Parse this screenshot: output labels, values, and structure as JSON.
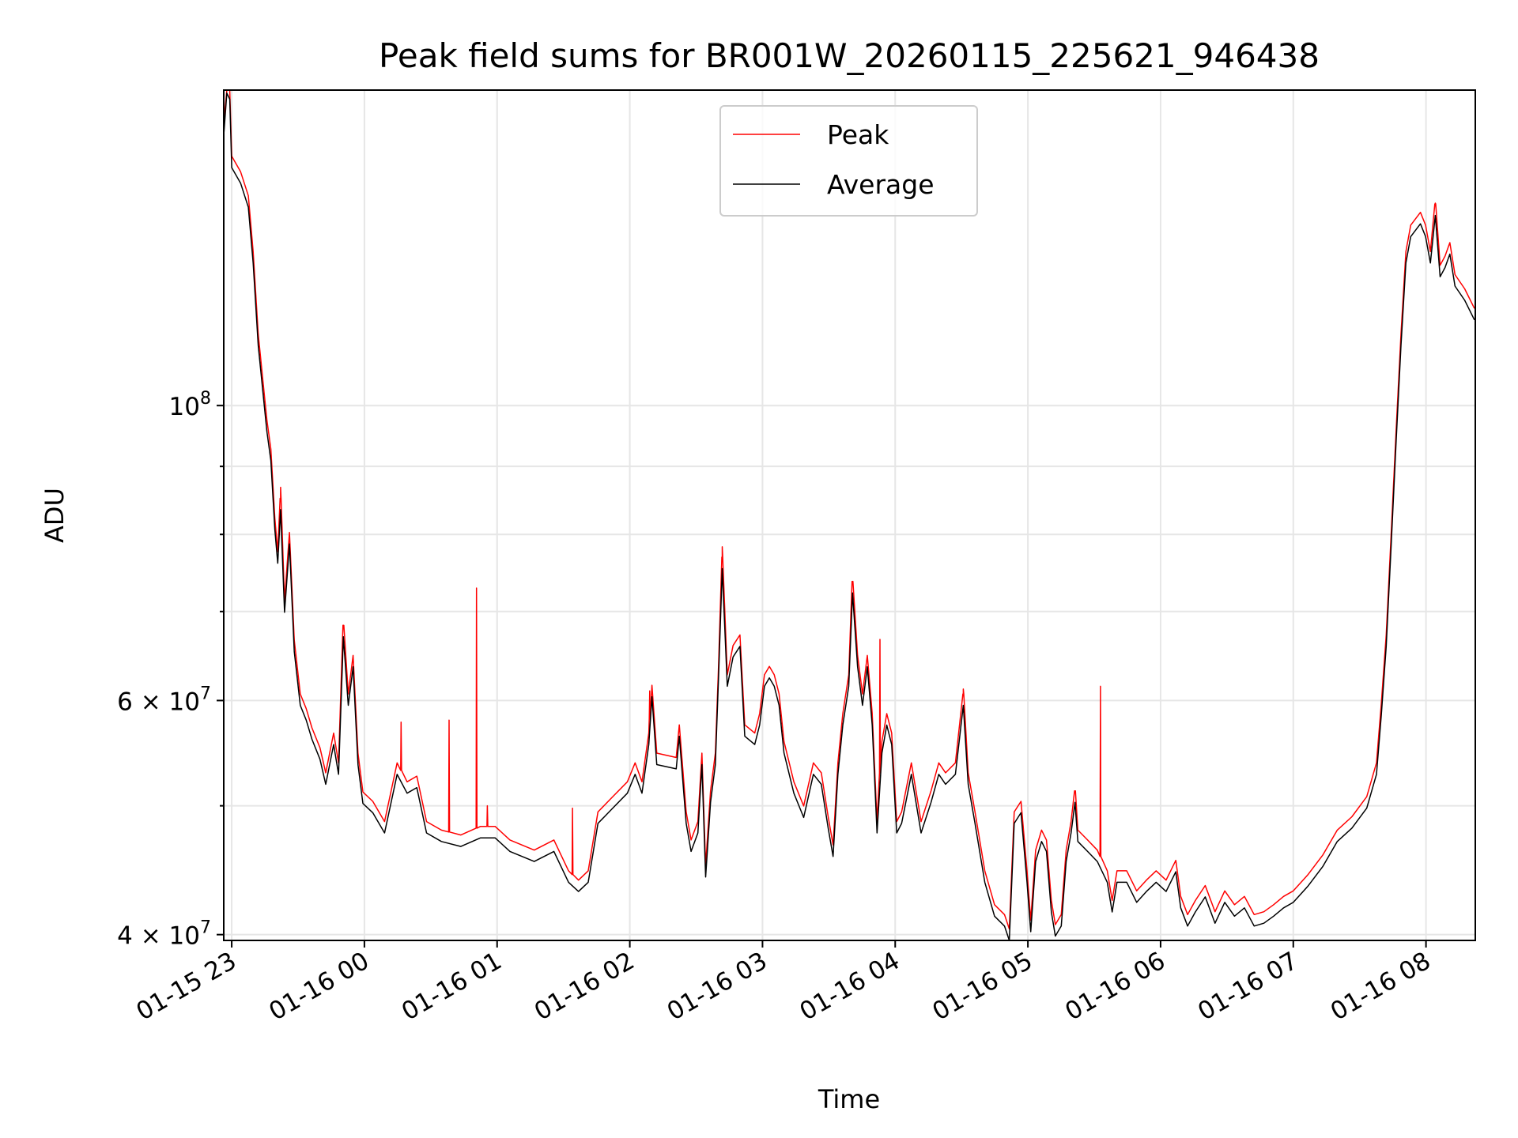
{
  "chart_data": {
    "type": "line",
    "title": "Peak field sums for BR001W_20260115_225621_946438",
    "xlabel": "Time",
    "ylabel": "ADU",
    "x_units": "minutes since 01-15 23:00",
    "xlim": [
      -3.6,
      562.3
    ],
    "yscale": "log",
    "ylim": [
      39600000,
      172700000
    ],
    "grid": true,
    "legend_position": "top-center",
    "x_ticks": [
      {
        "value": 0,
        "label": "01-15 23"
      },
      {
        "value": 60,
        "label": "01-16 00"
      },
      {
        "value": 120,
        "label": "01-16 01"
      },
      {
        "value": 180,
        "label": "01-16 02"
      },
      {
        "value": 240,
        "label": "01-16 03"
      },
      {
        "value": 300,
        "label": "01-16 04"
      },
      {
        "value": 360,
        "label": "01-16 05"
      },
      {
        "value": 420,
        "label": "01-16 06"
      },
      {
        "value": 480,
        "label": "01-16 07"
      },
      {
        "value": 540,
        "label": "01-16 08"
      }
    ],
    "y_major_ticks": [
      {
        "value": 40000000,
        "mantissa": "4",
        "exponent": "7",
        "label": "4 × 10^7"
      },
      {
        "value": 60000000,
        "mantissa": "6",
        "exponent": "7",
        "label": "6 × 10^7"
      },
      {
        "value": 100000000,
        "mantissa": "",
        "exponent": "8",
        "label": "10^8"
      }
    ],
    "y_minor_ticks": [
      50000000,
      70000000,
      80000000,
      90000000
    ],
    "series": [
      {
        "name": "Peak",
        "color": "#ff0000",
        "baseline_ratio_to_average": 1.02,
        "spikes": [
          [
            22.1,
            86800000
          ],
          [
            50.5,
            68100000
          ],
          [
            76.6,
            57800000
          ],
          [
            98.3,
            58000000
          ],
          [
            110.7,
            72900000
          ],
          [
            115.6,
            50000000
          ],
          [
            154.1,
            49800000
          ],
          [
            189.0,
            61000000
          ],
          [
            221.8,
            78300000
          ],
          [
            280.7,
            73600000
          ],
          [
            293.1,
            66700000
          ],
          [
            330.8,
            61200000
          ],
          [
            381.3,
            51300000
          ],
          [
            392.8,
            61500000
          ],
          [
            544.2,
            142000000
          ]
        ]
      },
      {
        "name": "Average",
        "color": "#000000",
        "x": [
          -3.5,
          -2.2,
          -0.9,
          0,
          4.0,
          7.5,
          9.7,
          12.0,
          14.2,
          15.9,
          17.7,
          19.5,
          20.8,
          22.1,
          23.9,
          26.1,
          28.3,
          31.0,
          33.7,
          36.3,
          39.9,
          42.5,
          46.1,
          48.3,
          50.5,
          52.7,
          54.9,
          57.1,
          59.3,
          63.8,
          69.1,
          74.8,
          79.3,
          83.7,
          88.1,
          94.8,
          103.6,
          112.5,
          119.1,
          125.8,
          136.8,
          145.7,
          152.3,
          156.8,
          161.2,
          165.6,
          172.3,
          178.9,
          182.4,
          185.5,
          188.6,
          190.0,
          192.2,
          201.0,
          202.4,
          205.5,
          207.7,
          210.8,
          212.6,
          214.3,
          216.5,
          218.7,
          220.1,
          221.8,
          224.1,
          226.7,
          229.8,
          232.0,
          236.5,
          238.7,
          240.9,
          243.1,
          245.3,
          247.5,
          249.7,
          254.2,
          258.6,
          263.0,
          266.6,
          269.7,
          271.9,
          274.1,
          276.3,
          279.0,
          280.7,
          283.0,
          285.2,
          287.4,
          289.6,
          291.8,
          294.0,
          296.2,
          298.4,
          300.7,
          302.9,
          307.3,
          311.7,
          316.2,
          319.7,
          322.8,
          327.2,
          330.8,
          333.0,
          336.1,
          340.5,
          344.9,
          349.4,
          351.6,
          353.8,
          356.9,
          359.6,
          361.3,
          363.5,
          366.2,
          368.4,
          370.6,
          372.4,
          375.1,
          377.3,
          379.5,
          381.3,
          382.6,
          387.0,
          391.4,
          395.9,
          398.1,
          400.3,
          404.7,
          409.2,
          413.6,
          418.0,
          422.5,
          426.9,
          429.1,
          432.2,
          435.7,
          440.2,
          444.6,
          449.0,
          453.4,
          457.9,
          462.3,
          466.7,
          471.1,
          475.6,
          480.0,
          486.6,
          493.3,
          499.9,
          506.5,
          513.2,
          517.6,
          519.8,
          522.0,
          524.2,
          526.5,
          528.7,
          530.9,
          533.1,
          537.5,
          539.8,
          542.0,
          544.2,
          546.4,
          548.6,
          550.8,
          553.1,
          557.5,
          561.9
        ],
        "y": [
          160600000,
          171800000,
          170000000,
          151000000,
          147000000,
          141000000,
          128000000,
          111000000,
          102000000,
          95700000,
          90900000,
          80700000,
          76100000,
          83500000,
          69900000,
          78700000,
          65300000,
          59500000,
          58000000,
          56100000,
          54200000,
          51900000,
          55600000,
          52800000,
          67000000,
          59500000,
          63600000,
          53700000,
          50200000,
          49400000,
          47700000,
          52800000,
          51100000,
          51600000,
          47700000,
          47000000,
          46600000,
          47300000,
          47300000,
          46200000,
          45400000,
          46200000,
          43800000,
          43100000,
          43800000,
          48500000,
          49800000,
          51100000,
          52800000,
          51100000,
          55600000,
          60400000,
          53700000,
          53300000,
          56400000,
          48500000,
          46200000,
          47700000,
          53700000,
          44200000,
          50300000,
          53700000,
          62400000,
          75400000,
          61500000,
          64700000,
          65900000,
          56400000,
          55600000,
          57500000,
          61500000,
          62400000,
          61500000,
          59500000,
          54800000,
          51100000,
          49000000,
          52800000,
          51900000,
          48100000,
          45800000,
          52800000,
          57500000,
          61500000,
          72300000,
          63600000,
          59500000,
          63600000,
          57500000,
          47700000,
          54800000,
          57500000,
          55600000,
          47700000,
          48500000,
          52800000,
          47700000,
          50300000,
          52800000,
          51900000,
          52800000,
          59500000,
          51900000,
          48500000,
          43800000,
          41300000,
          40600000,
          39600000,
          48500000,
          49400000,
          43800000,
          40200000,
          45400000,
          47000000,
          46200000,
          41600000,
          39900000,
          40600000,
          45400000,
          47700000,
          50300000,
          47000000,
          46200000,
          45400000,
          43800000,
          41600000,
          43800000,
          43800000,
          42300000,
          43100000,
          43800000,
          43100000,
          44600000,
          41900000,
          40600000,
          41600000,
          42700000,
          40800000,
          42300000,
          41300000,
          41900000,
          40600000,
          40800000,
          41300000,
          41900000,
          42300000,
          43500000,
          45000000,
          47000000,
          48100000,
          49800000,
          52800000,
          58500000,
          65900000,
          78100000,
          94100000,
          111000000,
          128000000,
          134000000,
          137000000,
          134000000,
          128000000,
          139000000,
          125000000,
          127000000,
          130000000,
          123000000,
          120000000,
          116000000
        ]
      }
    ]
  }
}
